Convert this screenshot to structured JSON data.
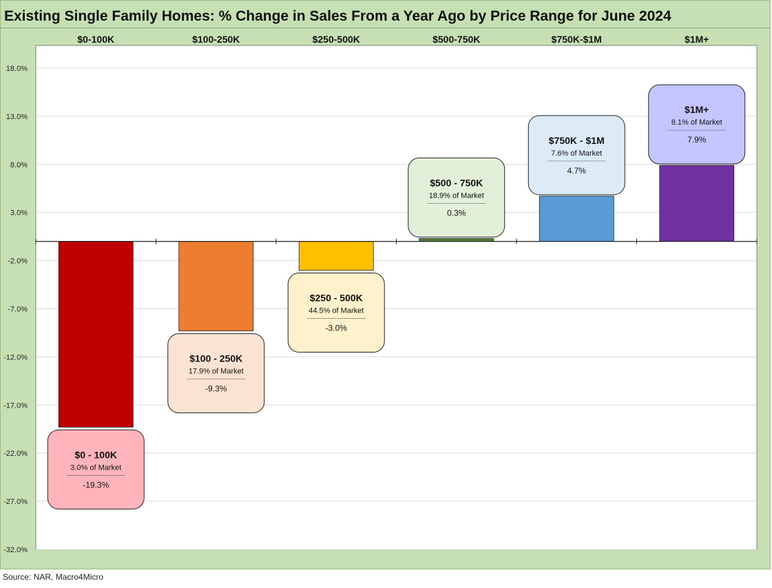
{
  "title": "Existing Single Family Homes: % Change in Sales From a Year Ago by Price Range for June 2024",
  "source": "Source: NAR, Macro4Micro",
  "colors": {
    "frame": "#c6e0b4",
    "plot": "#ffffff"
  },
  "chart_data": {
    "type": "bar",
    "title": "Existing Single Family Homes: % Change in Sales From a Year Ago by Price Range for June 2024",
    "categories": [
      "$0-100K",
      "$100-250K",
      "$250-500K",
      "$500-750K",
      "$750K-$1M",
      "$1M+"
    ],
    "values": [
      -19.3,
      -9.3,
      -3.0,
      0.3,
      4.7,
      7.9
    ],
    "bar_colors": [
      "#c00000",
      "#ed7d31",
      "#ffc000",
      "#548235",
      "#5b9bd5",
      "#7030a0"
    ],
    "y_ticks": [
      "18.0%",
      "13.0%",
      "8.0%",
      "3.0%",
      "-2.0%",
      "-7.0%",
      "-12.0%",
      "-17.0%",
      "-22.0%",
      "-27.0%",
      "-32.0%"
    ],
    "y_tick_values": [
      18,
      13,
      8,
      3,
      -2,
      -7,
      -12,
      -17,
      -22,
      -27,
      -32
    ],
    "ylim": [
      -32,
      21
    ],
    "grid": true,
    "callouts": [
      {
        "title": "$0 - 100K",
        "share": "3.0% of Market",
        "value": "-19.3%",
        "fill": "#ffb3ba"
      },
      {
        "title": "$100 - 250K",
        "share": "17.9% of Market",
        "value": "-9.3%",
        "fill": "#fbe3d3"
      },
      {
        "title": "$250 - 500K",
        "share": "44.5% of Market",
        "value": "-3.0%",
        "fill": "#fff1cc"
      },
      {
        "title": "$500 - 750K",
        "share": "18.9% of Market",
        "value": "0.3%",
        "fill": "#e2efd9"
      },
      {
        "title": "$750K - $1M",
        "share": "7.6% of Market",
        "value": "4.7%",
        "fill": "#ddebf7"
      },
      {
        "title": "$1M+",
        "share": "8.1% of Market",
        "value": "7.9%",
        "fill": "#c5c6ff"
      }
    ]
  }
}
